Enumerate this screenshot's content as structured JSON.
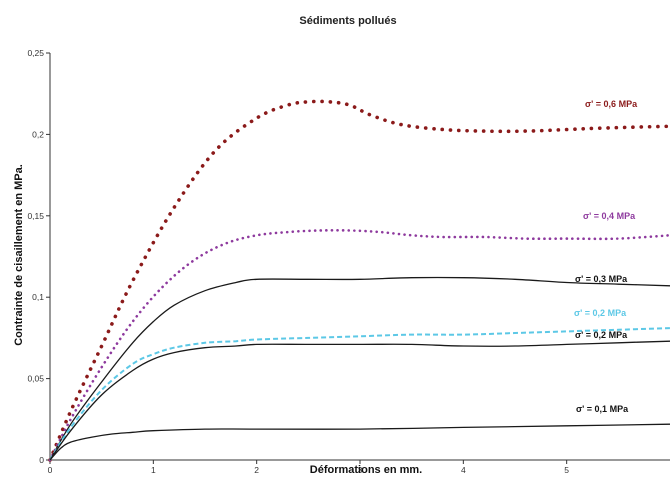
{
  "chart_data": {
    "type": "line",
    "title": "Sédiments pollués",
    "xlabel": "Déformations en mm.",
    "ylabel": "Contrainte de cisaillement en MPa.",
    "xlim": [
      0,
      6
    ],
    "ylim": [
      0,
      0.25
    ],
    "x_ticks": [
      0,
      1,
      2,
      3,
      4,
      5
    ],
    "y_ticks": [
      0,
      0.05,
      0.1,
      0.15,
      0.2,
      0.25
    ],
    "x_tick_labels": [
      "0",
      "1",
      "2",
      "3",
      "4",
      "5"
    ],
    "y_tick_labels": [
      "0",
      "0,05",
      "0,1",
      "0,15",
      "0,2",
      "0,25"
    ],
    "grid": false,
    "legend": "inline labels at right of curves",
    "series": [
      {
        "name": "σ' = 0,6 MPa",
        "style": "dotted-large",
        "color": "#8b1a1a",
        "x": [
          0,
          0.2,
          0.5,
          0.8,
          1.2,
          1.6,
          2.0,
          2.3,
          2.5,
          2.7,
          2.9,
          3.1,
          3.4,
          3.8,
          4.2,
          4.6,
          5.0,
          5.4,
          6.0
        ],
        "y": [
          0,
          0.03,
          0.07,
          0.11,
          0.155,
          0.19,
          0.21,
          0.218,
          0.22,
          0.22,
          0.218,
          0.212,
          0.206,
          0.203,
          0.202,
          0.202,
          0.203,
          0.204,
          0.205
        ]
      },
      {
        "name": "σ' = 0,4 MPa",
        "style": "dotted",
        "color": "#8e3a9e",
        "x": [
          0,
          0.2,
          0.5,
          0.8,
          1.1,
          1.4,
          1.7,
          2.0,
          2.3,
          2.6,
          2.9,
          3.2,
          3.5,
          3.8,
          4.2,
          4.6,
          5.0,
          5.5,
          6.0
        ],
        "y": [
          0,
          0.025,
          0.057,
          0.085,
          0.107,
          0.123,
          0.133,
          0.138,
          0.14,
          0.141,
          0.141,
          0.14,
          0.138,
          0.137,
          0.137,
          0.136,
          0.136,
          0.136,
          0.138
        ]
      },
      {
        "name": "σ' = 0,3 MPa",
        "style": "solid",
        "color": "#1a1a1a",
        "x": [
          0,
          0.2,
          0.5,
          0.8,
          1.0,
          1.2,
          1.5,
          1.8,
          2.0,
          2.5,
          3.0,
          3.5,
          4.0,
          4.5,
          5.0,
          5.5,
          6.0
        ],
        "y": [
          0,
          0.022,
          0.048,
          0.072,
          0.085,
          0.095,
          0.104,
          0.109,
          0.111,
          0.111,
          0.111,
          0.112,
          0.112,
          0.111,
          0.109,
          0.108,
          0.107
        ]
      },
      {
        "name": "σ' = 0,2 MPa",
        "style": "dashed",
        "color": "#5cc8e6",
        "x": [
          0,
          0.2,
          0.5,
          0.8,
          1.0,
          1.2,
          1.5,
          1.8,
          2.0,
          2.5,
          3.0,
          3.5,
          4.0,
          4.5,
          5.0,
          5.5,
          6.0
        ],
        "y": [
          0,
          0.02,
          0.043,
          0.059,
          0.065,
          0.069,
          0.072,
          0.073,
          0.074,
          0.075,
          0.076,
          0.077,
          0.077,
          0.078,
          0.079,
          0.08,
          0.081
        ]
      },
      {
        "name": "σ' = 0,2 MPa",
        "style": "solid",
        "color": "#1a1a1a",
        "x": [
          0,
          0.2,
          0.5,
          0.8,
          1.0,
          1.2,
          1.5,
          1.8,
          2.0,
          2.5,
          3.0,
          3.5,
          4.0,
          4.5,
          5.0,
          5.5,
          6.0
        ],
        "y": [
          0,
          0.018,
          0.04,
          0.055,
          0.062,
          0.066,
          0.069,
          0.07,
          0.071,
          0.071,
          0.071,
          0.071,
          0.07,
          0.07,
          0.071,
          0.072,
          0.073
        ]
      },
      {
        "name": "σ' = 0,1 MPa",
        "style": "solid",
        "color": "#1a1a1a",
        "x": [
          0,
          0.1,
          0.2,
          0.4,
          0.6,
          0.8,
          1.0,
          1.5,
          2.0,
          3.0,
          4.0,
          5.0,
          6.0
        ],
        "y": [
          0,
          0.007,
          0.011,
          0.014,
          0.016,
          0.017,
          0.018,
          0.019,
          0.019,
          0.019,
          0.02,
          0.021,
          0.022
        ]
      }
    ],
    "label_colors": [
      "#8b1a1a",
      "#8e3a9e",
      "#111111",
      "#5cc8e6",
      "#111111",
      "#111111"
    ]
  }
}
